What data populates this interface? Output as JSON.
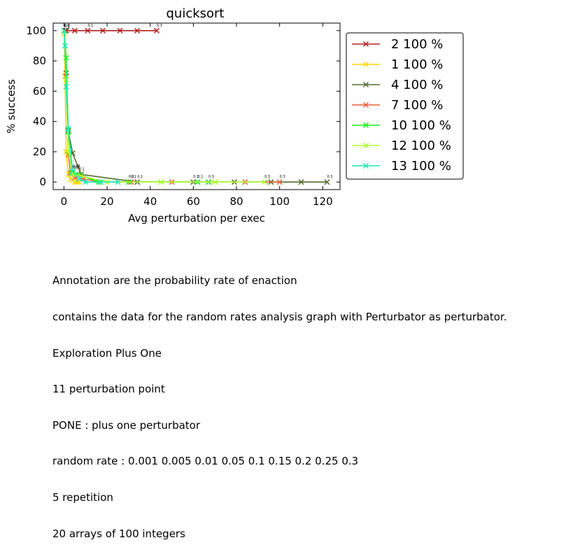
{
  "chart_data": {
    "type": "line",
    "title": "quicksort",
    "xlabel": "Avg perturbation per exec",
    "ylabel": "% success",
    "xlim": [
      -5,
      128
    ],
    "ylim": [
      -5,
      105
    ],
    "xticks": [
      "0",
      "20",
      "40",
      "60",
      "80",
      "100",
      "120"
    ],
    "yticks": [
      "0",
      "20",
      "40",
      "60",
      "80",
      "100"
    ],
    "legend_position": "outside-right",
    "series": [
      {
        "name": "2 100 %",
        "color": "#b22222",
        "x": [
          0.1,
          0.5,
          1,
          5,
          11,
          18,
          26,
          34,
          43
        ],
        "y": [
          100,
          100,
          100,
          100,
          100,
          100,
          100,
          100,
          100
        ],
        "labels": [
          "0.0",
          "",
          "",
          "",
          "0.1",
          "",
          "",
          "",
          "0.3"
        ]
      },
      {
        "name": "1 100 %",
        "color": "#ffd700",
        "x": [
          0.1,
          0.5,
          1,
          2,
          3,
          4,
          5,
          6,
          7
        ],
        "y": [
          98,
          70,
          20,
          5,
          2,
          1,
          0,
          0,
          0
        ],
        "labels": [
          "0.0",
          "",
          "",
          "",
          "0.1",
          "",
          "",
          "",
          ""
        ]
      },
      {
        "name": "4 100 %",
        "color": "#556b2f",
        "x": [
          0.1,
          1,
          2,
          4,
          8,
          34,
          60,
          79,
          96,
          110,
          122
        ],
        "y": [
          100,
          72,
          34,
          19,
          5,
          0,
          0,
          0,
          0,
          0,
          0
        ],
        "labels": [
          "0.0",
          "",
          "",
          "",
          "",
          "0.1",
          "0.1",
          "",
          "",
          "",
          "0.3"
        ]
      },
      {
        "name": "7 100 %",
        "color": "#e9603a",
        "x": [
          0.1,
          1,
          2,
          3,
          5,
          9,
          17,
          31,
          50,
          67,
          84,
          100
        ],
        "y": [
          100,
          70,
          18,
          6,
          3,
          2,
          0,
          0,
          0,
          0,
          0,
          0
        ],
        "labels": [
          "0.0",
          "",
          "",
          "0.05",
          "",
          "",
          "",
          "0.1",
          "",
          "0.3",
          "",
          "0.3"
        ]
      },
      {
        "name": "10 100 %",
        "color": "#11ee11",
        "x": [
          0.1,
          1,
          2,
          4,
          7,
          16,
          30,
          45,
          62,
          67
        ],
        "y": [
          100,
          82,
          33,
          6,
          5,
          0,
          0,
          0,
          0,
          0
        ],
        "labels": [
          "0.0",
          "",
          "",
          "0.05",
          "0.1",
          "",
          "0.1",
          "",
          "0.1",
          ""
        ]
      },
      {
        "name": "12 100 %",
        "color": "#adff2f",
        "x": [
          0.1,
          1,
          2,
          4,
          8,
          20,
          45,
          70,
          93
        ],
        "y": [
          100,
          68,
          20,
          5,
          4,
          0,
          0,
          0,
          0
        ],
        "labels": [
          "0.0",
          "",
          "",
          "",
          "",
          "",
          "",
          "",
          "0.3"
        ]
      },
      {
        "name": "13 100 %",
        "color": "#1de9b6",
        "x": [
          0.1,
          0.5,
          1,
          2,
          4,
          7,
          10,
          17,
          25
        ],
        "y": [
          100,
          90,
          63,
          35,
          7,
          2,
          0,
          0,
          0
        ],
        "labels": [
          "0.0",
          "",
          "",
          "",
          "0.05",
          "",
          "",
          "",
          ""
        ]
      }
    ]
  },
  "notes": [
    "Annotation are the probability rate of enaction",
    "contains the data for the random rates analysis graph with Perturbator as perturbator.",
    "Exploration Plus One",
    "11 perturbation point",
    "PONE : plus one perturbator",
    "random rate : 0.001 0.005 0.01 0.05 0.1 0.15 0.2 0.25 0.3",
    "5 repetition",
    "20 arrays of 100 integers"
  ]
}
